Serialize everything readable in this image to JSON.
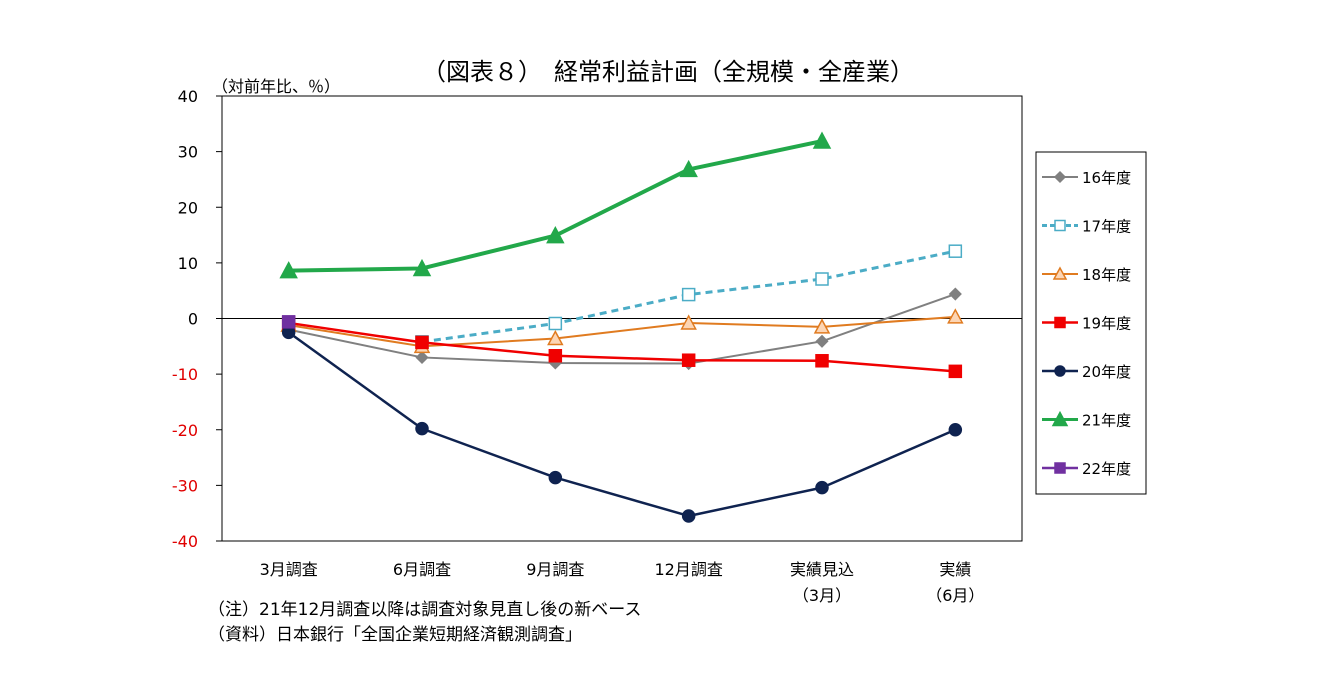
{
  "chart_data": {
    "type": "line",
    "title": "（図表８）　経常利益計画（全規模・全産業）",
    "ylabel": "（対前年比、％）",
    "ylim": [
      -40,
      40
    ],
    "yticks": [
      "40",
      "30",
      "20",
      "10",
      "0",
      "-10",
      "-20",
      "-30",
      "-40"
    ],
    "ytick_values": [
      40,
      30,
      20,
      10,
      0,
      -10,
      -20,
      -30,
      -40
    ],
    "categories": [
      {
        "line1": "3月調査",
        "line2": ""
      },
      {
        "line1": "6月調査",
        "line2": ""
      },
      {
        "line1": "9月調査",
        "line2": ""
      },
      {
        "line1": "12月調査",
        "line2": ""
      },
      {
        "line1": "実績見込",
        "line2": "（3月）"
      },
      {
        "line1": "実績",
        "line2": "（6月）"
      }
    ],
    "legend_position": "right",
    "grid": false,
    "series": [
      {
        "name": "16年度",
        "color": "#808080",
        "marker": "diamond",
        "filled": true,
        "dashed": false,
        "width": 2,
        "values": [
          -2.0,
          -7.0,
          -8.0,
          -8.1,
          -4.1,
          4.4
        ]
      },
      {
        "name": "17年度",
        "color": "#4BACC6",
        "marker": "square",
        "filled": false,
        "dashed": true,
        "width": 3,
        "values": [
          null,
          -4.2,
          -0.9,
          4.3,
          7.1,
          12.1
        ]
      },
      {
        "name": "18年度",
        "color": "#E07B20",
        "marker": "triangle",
        "filled": false,
        "fill": "#FCD5B4",
        "dashed": false,
        "width": 2,
        "values": [
          -1.2,
          -5.0,
          -3.6,
          -0.8,
          -1.5,
          0.3
        ]
      },
      {
        "name": "19年度",
        "color": "#F00000",
        "marker": "square",
        "filled": true,
        "dashed": false,
        "width": 2.5,
        "values": [
          -0.8,
          -4.3,
          -6.7,
          -7.5,
          -7.6,
          -9.5
        ]
      },
      {
        "name": "20年度",
        "color": "#0F2350",
        "marker": "circle",
        "filled": true,
        "dashed": false,
        "width": 2.5,
        "values": [
          -2.5,
          -19.8,
          -28.6,
          -35.5,
          -30.4,
          -20.0
        ]
      },
      {
        "name": "21年度",
        "color": "#22A84A",
        "marker": "triangle",
        "filled": true,
        "dashed": false,
        "width": 4,
        "values": [
          8.6,
          9.0,
          14.9,
          26.8,
          31.9,
          null
        ]
      },
      {
        "name": "22年度",
        "color": "#7030A0",
        "marker": "square",
        "filled": true,
        "dashed": false,
        "width": 2.5,
        "values": [
          -0.6,
          null,
          null,
          null,
          null,
          null
        ]
      }
    ],
    "notes": [
      "（注）21年12月調査以降は調査対象見直し後の新ベース",
      "（資料）日本銀行「全国企業短期経済観測調査」"
    ]
  }
}
